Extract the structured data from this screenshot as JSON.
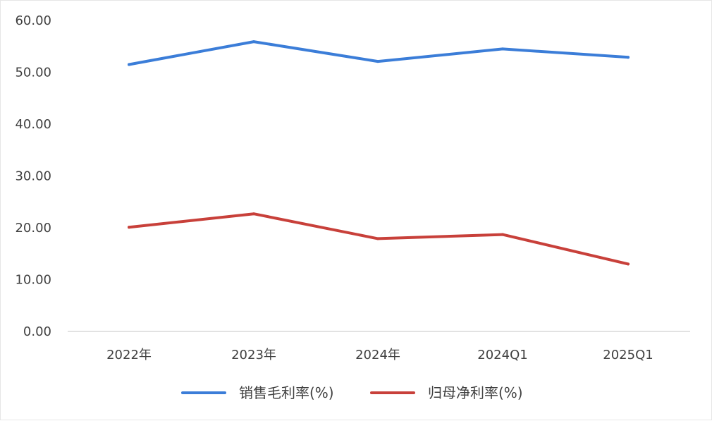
{
  "chart_data": {
    "type": "line",
    "title": "",
    "xlabel": "",
    "ylabel": "",
    "categories": [
      "2022年",
      "2023年",
      "2024年",
      "2024Q1",
      "2025Q1"
    ],
    "ylim": [
      0,
      60
    ],
    "yticks": [
      "0.00",
      "10.00",
      "20.00",
      "30.00",
      "40.00",
      "50.00",
      "60.00"
    ],
    "grid": false,
    "legend_position": "bottom",
    "series": [
      {
        "name": "销售毛利率(%)",
        "color": "#3b7dd8",
        "values": [
          51.5,
          55.9,
          52.1,
          54.5,
          52.9
        ]
      },
      {
        "name": "归母净利率(%)",
        "color": "#c8403a",
        "values": [
          20.1,
          22.7,
          17.9,
          18.7,
          13.0
        ]
      }
    ]
  }
}
